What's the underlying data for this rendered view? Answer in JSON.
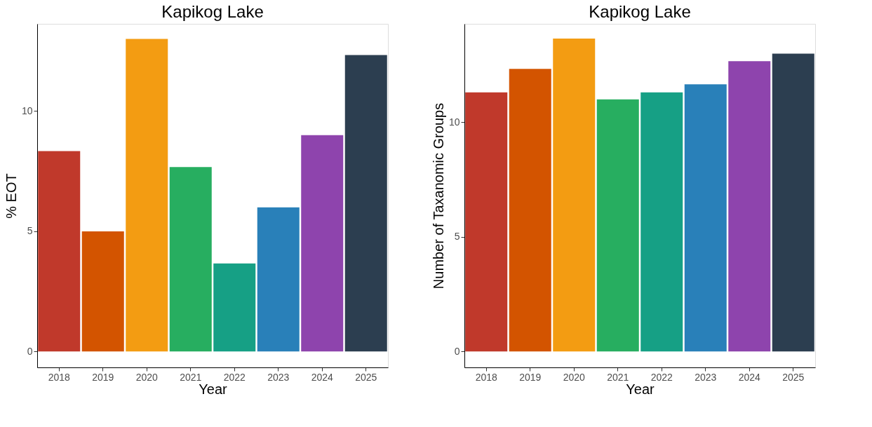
{
  "chart_data": [
    {
      "type": "bar",
      "title": "Kapikog Lake",
      "xlabel": "Year",
      "ylabel": "% EOT",
      "categories": [
        "2018",
        "2019",
        "2020",
        "2021",
        "2022",
        "2023",
        "2024",
        "2025"
      ],
      "values": [
        8.34,
        5.0,
        13.0,
        7.67,
        3.66,
        6.0,
        9.0,
        12.33
      ],
      "colors": [
        "#c0392b",
        "#d35400",
        "#f39c12",
        "#27ae60",
        "#16a085",
        "#2980b9",
        "#8e44ad",
        "#2c3e50"
      ],
      "ylim": [
        -0.66,
        13.63
      ],
      "yticks": [
        0,
        5,
        10
      ],
      "grid": false
    },
    {
      "type": "bar",
      "title": "Kapikog Lake",
      "xlabel": "Year",
      "ylabel": "Number of Taxanomic Groups",
      "categories": [
        "2018",
        "2019",
        "2020",
        "2021",
        "2022",
        "2023",
        "2024",
        "2025"
      ],
      "values": [
        11.31,
        12.33,
        13.66,
        11.0,
        11.31,
        11.66,
        12.67,
        13.0
      ],
      "colors": [
        "#c0392b",
        "#d35400",
        "#f39c12",
        "#27ae60",
        "#16a085",
        "#2980b9",
        "#8e44ad",
        "#2c3e50"
      ],
      "ylim": [
        -0.7,
        14.3
      ],
      "yticks": [
        0,
        5,
        10
      ],
      "grid": false
    }
  ]
}
